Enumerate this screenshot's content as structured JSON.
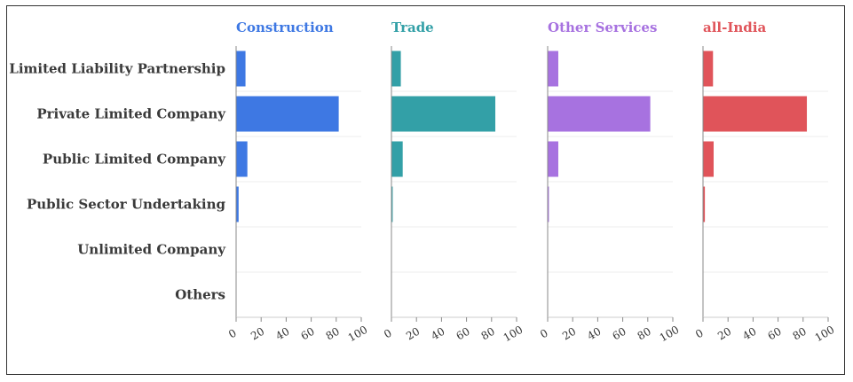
{
  "chart_data": {
    "type": "bar",
    "orientation": "horizontal",
    "categories": [
      "Limited Liability Partnership",
      "Private Limited Company",
      "Public Limited Company",
      "Public Sector Undertaking",
      "Unlimited Company",
      "Others"
    ],
    "xlim": [
      0,
      100
    ],
    "xticks": [
      "0",
      "20",
      "40",
      "60",
      "80",
      "100"
    ],
    "grid": "horizontal row separators",
    "panels": [
      {
        "title": "Construction",
        "color": "#3e78e3",
        "values": [
          7.5,
          82,
          9,
          2,
          0,
          0
        ]
      },
      {
        "title": "Trade",
        "color": "#33a0a7",
        "values": [
          7.5,
          83,
          9,
          1,
          0,
          0
        ]
      },
      {
        "title": "Other Services",
        "color": "#a772e0",
        "values": [
          8.5,
          82,
          8.5,
          1,
          0,
          0.3
        ]
      },
      {
        "title": "all-India",
        "color": "#e0545a",
        "values": [
          8,
          83,
          8.5,
          1.5,
          0,
          0.3
        ]
      }
    ]
  }
}
